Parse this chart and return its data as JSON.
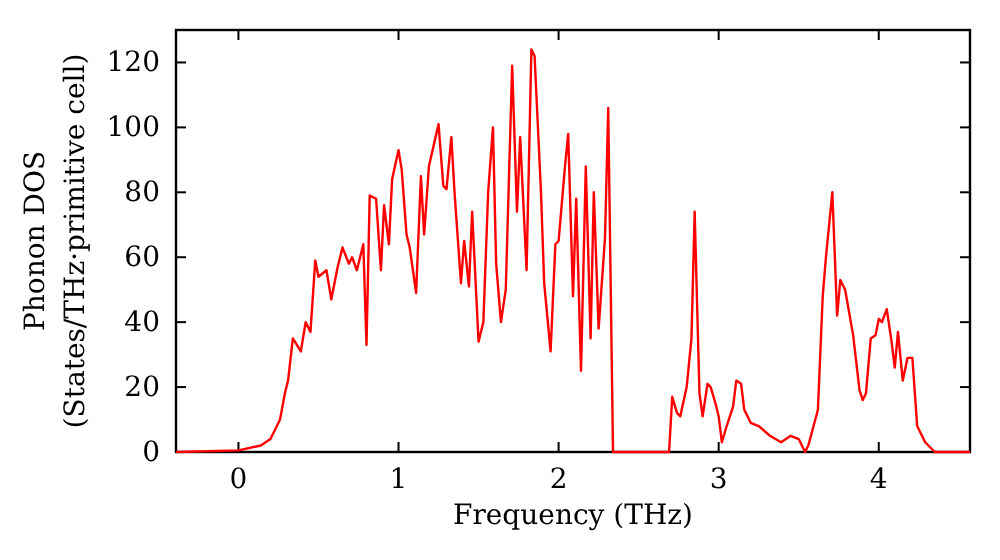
{
  "chart_data": {
    "type": "line",
    "xlabel": "Frequency (THz)",
    "ylabel": "Phonon DOS\n(States/THz·primitive cell)",
    "xlim": [
      -0.39,
      4.57
    ],
    "ylim": [
      0,
      130
    ],
    "xticks": [
      0,
      1,
      2,
      3,
      4
    ],
    "yticks": [
      0,
      20,
      40,
      60,
      80,
      100,
      120
    ],
    "grid": false,
    "series": [
      {
        "color": "#ff0000",
        "x": [
          -0.39,
          0,
          0.14,
          0.2,
          0.26,
          0.29,
          0.31,
          0.34,
          0.39,
          0.42,
          0.45,
          0.48,
          0.5,
          0.55,
          0.58,
          0.62,
          0.65,
          0.69,
          0.71,
          0.74,
          0.78,
          0.8,
          0.82,
          0.86,
          0.89,
          0.91,
          0.94,
          0.96,
          1.0,
          1.02,
          1.05,
          1.07,
          1.11,
          1.14,
          1.16,
          1.19,
          1.25,
          1.28,
          1.3,
          1.33,
          1.35,
          1.39,
          1.41,
          1.44,
          1.46,
          1.5,
          1.53,
          1.56,
          1.59,
          1.61,
          1.64,
          1.67,
          1.71,
          1.74,
          1.76,
          1.8,
          1.83,
          1.85,
          1.89,
          1.91,
          1.95,
          1.98,
          2.0,
          2.04,
          2.06,
          2.09,
          2.11,
          2.14,
          2.17,
          2.2,
          2.22,
          2.25,
          2.29,
          2.31,
          2.34,
          2.69,
          2.71,
          2.74,
          2.76,
          2.8,
          2.83,
          2.85,
          2.88,
          2.9,
          2.93,
          2.95,
          2.98,
          3.0,
          3.02,
          3.05,
          3.09,
          3.11,
          3.14,
          3.16,
          3.2,
          3.25,
          3.32,
          3.39,
          3.45,
          3.5,
          3.54,
          3.56,
          3.62,
          3.65,
          3.67,
          3.71,
          3.74,
          3.76,
          3.79,
          3.84,
          3.88,
          3.9,
          3.92,
          3.95,
          3.98,
          4.0,
          4.02,
          4.05,
          4.08,
          4.1,
          4.12,
          4.15,
          4.18,
          4.21,
          4.24,
          4.29,
          4.35,
          4.57
        ],
        "values": [
          0,
          0.5,
          2,
          4,
          10,
          18,
          22,
          35,
          31,
          40,
          37,
          59,
          54,
          56,
          47,
          57,
          63,
          58,
          60,
          56,
          64,
          33,
          79,
          78,
          56,
          76,
          64,
          84,
          93,
          87,
          67,
          63,
          49,
          85,
          67,
          88,
          101,
          82,
          81,
          97,
          80,
          52,
          65,
          51,
          74,
          34,
          40,
          80,
          100,
          58,
          40,
          50,
          119,
          74,
          97,
          56,
          124,
          122,
          80,
          52,
          31,
          64,
          65,
          88,
          98,
          48,
          78,
          25,
          88,
          35,
          80,
          38,
          66,
          106,
          0,
          0,
          17,
          12,
          11,
          20,
          35,
          74,
          18,
          11,
          21,
          20,
          15,
          11,
          3,
          8,
          14,
          22,
          21,
          13,
          9,
          8,
          5,
          3,
          5,
          4,
          0,
          2,
          13,
          48,
          60,
          80,
          42,
          53,
          50,
          36,
          19,
          16,
          18,
          35,
          36,
          41,
          40,
          44,
          34,
          26,
          37,
          22,
          29,
          29,
          8,
          3,
          0,
          0
        ]
      }
    ]
  }
}
